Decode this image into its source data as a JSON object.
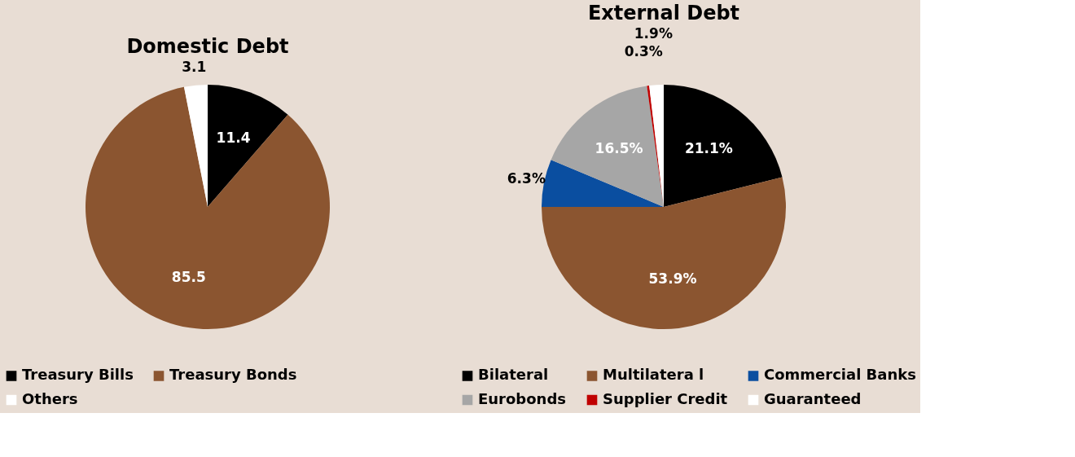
{
  "chart_data": [
    {
      "type": "pie",
      "title": "Domestic Debt",
      "categories": [
        "Treasury Bills",
        "Treasury Bonds",
        "Others"
      ],
      "values": [
        11.4,
        85.5,
        3.1
      ],
      "colors": [
        "#000000",
        "#8b5530",
        "#ffffff"
      ],
      "value_labels": [
        "11.4",
        "85.5",
        "3.1"
      ],
      "legend": "bottom"
    },
    {
      "type": "pie",
      "title": "External Debt",
      "categories": [
        "Bilateral",
        "Multilatera l",
        "Commercial Banks",
        "Eurobonds",
        "Supplier Credit",
        "Guaranteed"
      ],
      "values": [
        21.1,
        53.9,
        6.3,
        16.5,
        0.3,
        1.9
      ],
      "colors": [
        "#000000",
        "#8b5530",
        "#0a4ea0",
        "#a6a6a6",
        "#c00000",
        "#ffffff"
      ],
      "value_labels": [
        "21.1%",
        "53.9%",
        "6.3%",
        "16.5%",
        "0.3%",
        "1.9%"
      ],
      "legend": "bottom"
    }
  ]
}
